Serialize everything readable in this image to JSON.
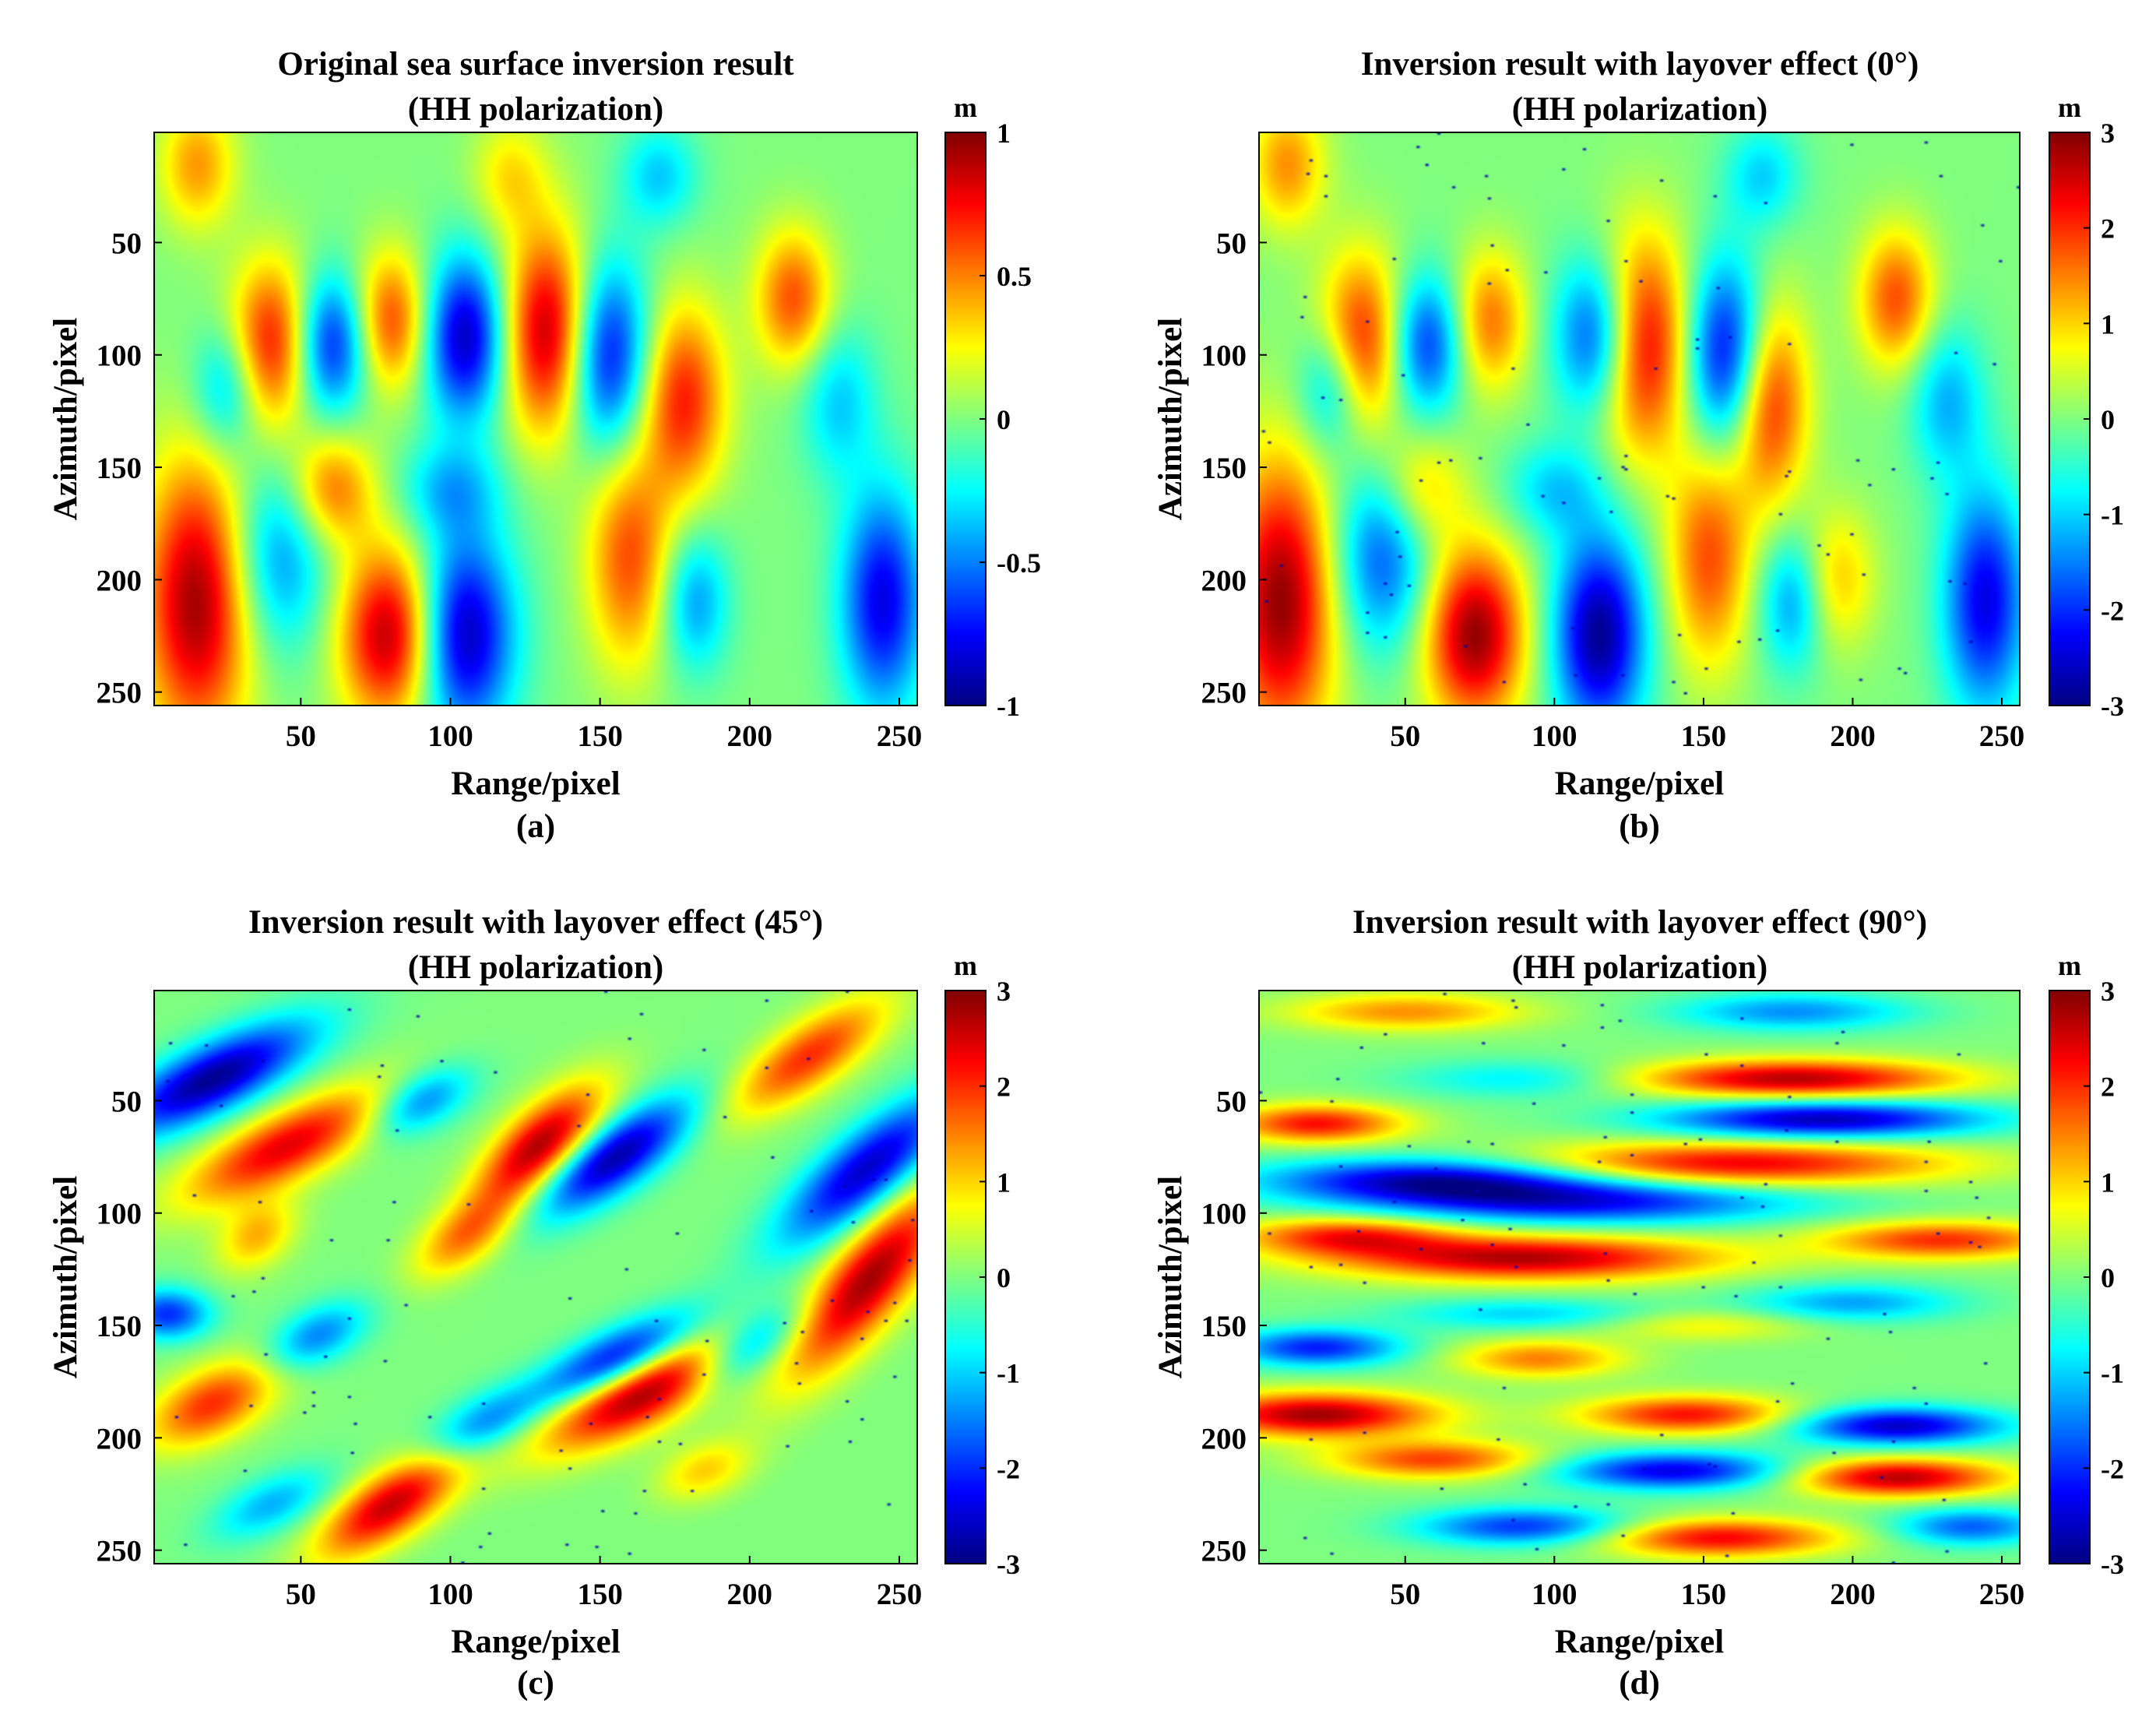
{
  "chart_data": [
    {
      "type": "heatmap",
      "caption": "(a)",
      "title": "Original sea surface inversion result",
      "subtitle": "(HH polarization)",
      "xlabel": "Range/pixel",
      "ylabel": "Azimuth/pixel",
      "xlim": [
        1,
        256
      ],
      "ylim": [
        1,
        256
      ],
      "xticks": [
        50,
        100,
        150,
        200,
        250
      ],
      "yticks": [
        50,
        100,
        150,
        200,
        250
      ],
      "colorbar": {
        "unit": "m",
        "min": -1,
        "max": 1,
        "ticks": [
          1,
          0.5,
          0,
          -0.5,
          -1
        ],
        "colormap": "jet"
      },
      "pattern": "vertical crests, peak ~0.9 m at range 135 azimuth 90; trough ~-0.9 m at range 105 azimuth 225",
      "noise": false
    },
    {
      "type": "heatmap",
      "caption": "(b)",
      "title": "Inversion result with layover effect (0°)",
      "subtitle": "(HH polarization)",
      "xlabel": "Range/pixel",
      "ylabel": "Azimuth/pixel",
      "xlim": [
        1,
        256
      ],
      "ylim": [
        1,
        256
      ],
      "xticks": [
        50,
        100,
        150,
        200,
        250
      ],
      "yticks": [
        50,
        100,
        150,
        200,
        250
      ],
      "colorbar": {
        "unit": "m",
        "min": -3,
        "max": 3,
        "ticks": [
          3,
          2,
          1,
          0,
          -1,
          -2,
          -3
        ],
        "colormap": "jet"
      },
      "pattern": "vertical crests with layover discontinuities",
      "noise": true
    },
    {
      "type": "heatmap",
      "caption": "(c)",
      "title": "Inversion result with layover effect (45°)",
      "subtitle": "(HH polarization)",
      "xlabel": "Range/pixel",
      "ylabel": "Azimuth/pixel",
      "xlim": [
        1,
        256
      ],
      "ylim": [
        1,
        256
      ],
      "xticks": [
        50,
        100,
        150,
        200,
        250
      ],
      "yticks": [
        50,
        100,
        150,
        200,
        250
      ],
      "colorbar": {
        "unit": "m",
        "min": -3,
        "max": 3,
        "ticks": [
          3,
          2,
          1,
          0,
          -1,
          -2,
          -3
        ],
        "colormap": "jet"
      },
      "pattern": "diagonal crests oriented 45°",
      "noise": true
    },
    {
      "type": "heatmap",
      "caption": "(d)",
      "title": "Inversion result with layover effect (90°)",
      "subtitle": "(HH polarization)",
      "xlabel": "Range/pixel",
      "ylabel": "Azimuth/pixel",
      "xlim": [
        1,
        256
      ],
      "ylim": [
        1,
        256
      ],
      "xticks": [
        50,
        100,
        150,
        200,
        250
      ],
      "yticks": [
        50,
        100,
        150,
        200,
        250
      ],
      "colorbar": {
        "unit": "m",
        "min": -3,
        "max": 3,
        "ticks": [
          3,
          2,
          1,
          0,
          -1,
          -2,
          -3
        ],
        "colormap": "jet"
      },
      "pattern": "horizontal crests oriented 90°",
      "noise": true
    }
  ]
}
